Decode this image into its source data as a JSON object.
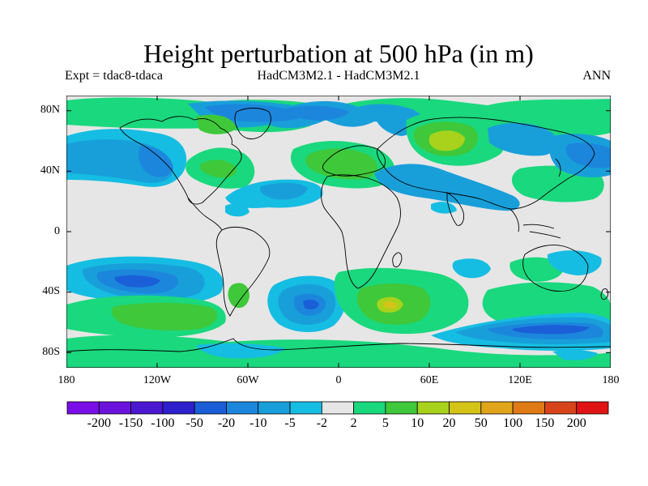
{
  "title": "Height perturbation at 500 hPa (in m)",
  "subtitle": {
    "left": "Expt = tdac8-tdaca",
    "center": "HadCM3M2.1 - HadCM3M2.1",
    "right": "ANN"
  },
  "y_ticks": [
    "80N",
    "40N",
    "0",
    "40S",
    "80S"
  ],
  "x_ticks": [
    "180",
    "120W",
    "60W",
    "0",
    "60E",
    "120E",
    "180"
  ],
  "colorbar": {
    "colors": [
      "#7a0ee6",
      "#6a12dc",
      "#4b18d2",
      "#2e20cc",
      "#1a5fd8",
      "#1c86dc",
      "#189fda",
      "#16bde2",
      "#e6e6e6",
      "#1ad87d",
      "#3ec83a",
      "#a8d21c",
      "#d4c418",
      "#e0a51a",
      "#e07a16",
      "#d8441a",
      "#e01414"
    ],
    "labels": [
      "-200",
      "-150",
      "-100",
      "-50",
      "-20",
      "-10",
      "-5",
      "-2",
      "2",
      "5",
      "10",
      "20",
      "50",
      "100",
      "150",
      "200"
    ]
  },
  "legend_colors": {
    "neutral": "#e6e6e6",
    "light_blue": "#16bde2",
    "mid_blue": "#189fda",
    "blue": "#1c86dc",
    "dark_blue": "#1a5fd8",
    "green": "#1ad87d",
    "lime": "#3ec83a",
    "yellow_green": "#a8d21c",
    "gold": "#d4c418"
  }
}
